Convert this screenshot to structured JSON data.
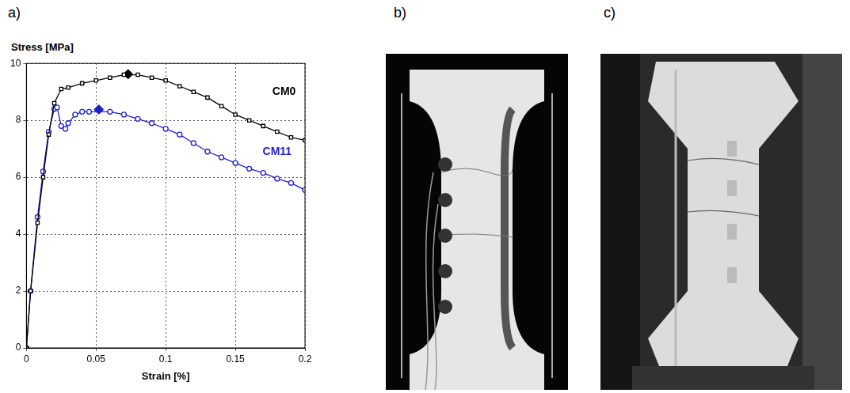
{
  "panel_labels": [
    "a)",
    "b)",
    "c)"
  ],
  "chart_data": {
    "type": "line",
    "y_label": "Stress [MPa]",
    "x_label": "Strain [%]",
    "xlim": [
      0,
      0.2
    ],
    "xticks": [
      0,
      0.05,
      0.1,
      0.15,
      0.2
    ],
    "ylim": [
      0,
      10
    ],
    "yticks": [
      0,
      2,
      4,
      6,
      8,
      10
    ],
    "grid": true,
    "series": [
      {
        "name": "CM0",
        "color": "#000000",
        "marker": "square",
        "line_style": "solid",
        "x": [
          0,
          0.003,
          0.008,
          0.012,
          0.016,
          0.02,
          0.025,
          0.03,
          0.04,
          0.05,
          0.06,
          0.07,
          0.08,
          0.09,
          0.1,
          0.11,
          0.12,
          0.13,
          0.14,
          0.15,
          0.16,
          0.17,
          0.18,
          0.19,
          0.2
        ],
        "values": [
          0,
          2,
          4.4,
          6,
          7.5,
          8.6,
          9.1,
          9.15,
          9.3,
          9.4,
          9.5,
          9.6,
          9.6,
          9.5,
          9.4,
          9.2,
          9.0,
          8.8,
          8.5,
          8.2,
          8.0,
          7.8,
          7.6,
          7.4,
          7.3
        ],
        "peak": {
          "x": 0.073,
          "y": 9.62
        },
        "label_at": {
          "x": 0.185,
          "y": 9.0
        }
      },
      {
        "name": "CM11",
        "color": "#1f1fd0",
        "marker": "circle",
        "line_style": "solid",
        "x": [
          0,
          0.003,
          0.008,
          0.012,
          0.016,
          0.02,
          0.022,
          0.025,
          0.028,
          0.03,
          0.035,
          0.04,
          0.045,
          0.06,
          0.07,
          0.08,
          0.09,
          0.1,
          0.11,
          0.12,
          0.13,
          0.14,
          0.15,
          0.16,
          0.17,
          0.18,
          0.19,
          0.2
        ],
        "values": [
          0,
          2,
          4.6,
          6.2,
          7.6,
          8.4,
          8.45,
          7.8,
          7.7,
          7.9,
          8.2,
          8.3,
          8.3,
          8.3,
          8.2,
          8.05,
          7.9,
          7.7,
          7.5,
          7.2,
          6.9,
          6.7,
          6.5,
          6.3,
          6.15,
          5.95,
          5.8,
          5.55
        ],
        "peak": {
          "x": 0.052,
          "y": 8.38
        },
        "label_at": {
          "x": 0.18,
          "y": 6.9
        }
      }
    ]
  }
}
